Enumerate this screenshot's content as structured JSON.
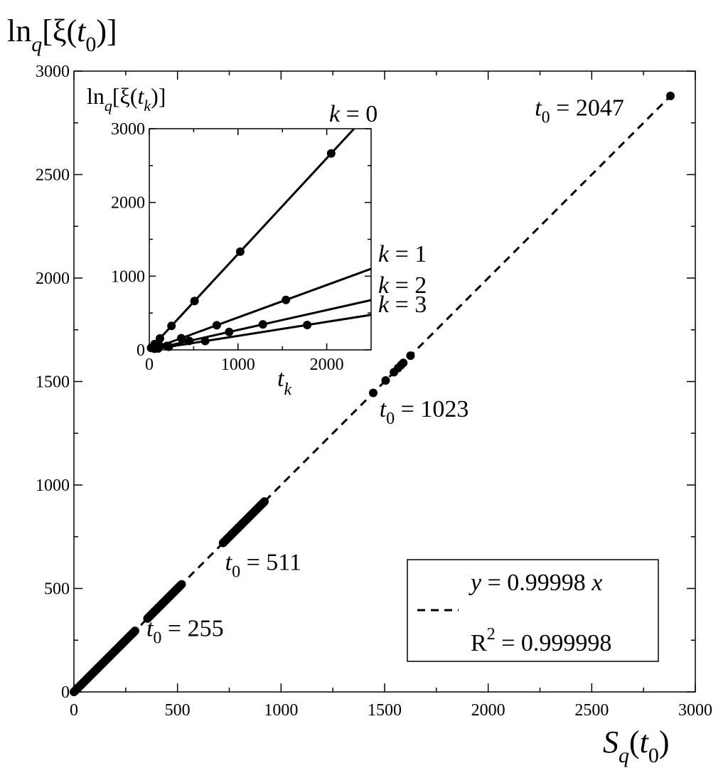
{
  "chart_data": [
    {
      "type": "scatter",
      "title": "",
      "xlabel": {
        "base": "S",
        "sub1": "q",
        "open": "(",
        "var": "t",
        "sub2": "0",
        "close": ")"
      },
      "ylabel": {
        "base": "ln",
        "sub1": "q",
        "open": "[ξ(",
        "var": "t",
        "sub2": "0",
        "close": ")]"
      },
      "xlim": [
        0,
        3000
      ],
      "ylim": [
        0,
        3000
      ],
      "xticks": [
        "0",
        "500",
        "1000",
        "1500",
        "2000",
        "2500",
        "3000"
      ],
      "yticks": [
        "0",
        "500",
        "1000",
        "1500",
        "2000",
        "2500",
        "3000"
      ],
      "grid": false,
      "fit": {
        "slope": 0.99998,
        "style": "dashed",
        "x_range": [
          0,
          2900
        ]
      },
      "legend": {
        "position": "bottom-right",
        "line1": {
          "y": "y",
          "eq": " = 0.99998 ",
          "x": "x"
        },
        "line2": {
          "r": "R",
          "sup": "2",
          "eq": " = 0.999998"
        }
      },
      "point_segments": [
        {
          "from": 0,
          "to": 295,
          "count": 90
        },
        {
          "from": 355,
          "to": 520,
          "count": 50
        },
        {
          "from": 720,
          "to": 920,
          "count": 55
        }
      ],
      "points": [
        [
          1445,
          1445
        ],
        [
          1505,
          1505
        ],
        [
          1545,
          1545
        ],
        [
          1565,
          1565
        ],
        [
          1580,
          1580
        ],
        [
          1590,
          1590
        ],
        [
          1625,
          1625
        ],
        [
          2880,
          2880
        ]
      ],
      "annotations": [
        {
          "t": "t",
          "sub": "0",
          "eq": " = 255",
          "x": 350,
          "y": 270
        },
        {
          "t": "t",
          "sub": "0",
          "eq": " = 511",
          "x": 730,
          "y": 590
        },
        {
          "t": "t",
          "sub": "0",
          "eq": " = 1023",
          "x": 1475,
          "y": 1330
        },
        {
          "t": "t",
          "sub": "0",
          "eq": " = 2047",
          "x": 2225,
          "y": 2785
        }
      ]
    },
    {
      "type": "line",
      "title": "",
      "xlabel": {
        "base": "t",
        "sub": "k"
      },
      "ylabel": {
        "base": "ln",
        "sub1": "q",
        "open": "[ξ(",
        "var": "t",
        "sub2": "k",
        "close": ")]"
      },
      "xlim": [
        0,
        2500
      ],
      "ylim": [
        0,
        3000
      ],
      "xticks": [
        "0",
        "1000",
        "2000"
      ],
      "yticks": [
        "0",
        "1000",
        "2000",
        "3000"
      ],
      "grid": false,
      "series": [
        {
          "label_var": "k",
          "label_eq": " = 0",
          "slope": 1.3,
          "points": [
            [
              20,
              26
            ],
            [
              60,
              78
            ],
            [
              120,
              156
            ],
            [
              250,
              325
            ],
            [
              510,
              663
            ],
            [
              1025,
              1332
            ],
            [
              2050,
              2665
            ]
          ]
        },
        {
          "label_var": "k",
          "label_eq": " = 1",
          "slope": 0.44,
          "points": [
            [
              50,
              22
            ],
            [
              120,
              53
            ],
            [
              360,
              158
            ],
            [
              760,
              334
            ],
            [
              1540,
              678
            ]
          ]
        },
        {
          "label_var": "k",
          "label_eq": " = 2",
          "slope": 0.27,
          "points": [
            [
              60,
              16
            ],
            [
              200,
              54
            ],
            [
              450,
              122
            ],
            [
              900,
              243
            ],
            [
              1280,
              346
            ]
          ]
        },
        {
          "label_var": "k",
          "label_eq": " = 3",
          "slope": 0.19,
          "points": [
            [
              100,
              19
            ],
            [
              220,
              42
            ],
            [
              630,
              120
            ],
            [
              1780,
              338
            ]
          ]
        }
      ]
    }
  ]
}
